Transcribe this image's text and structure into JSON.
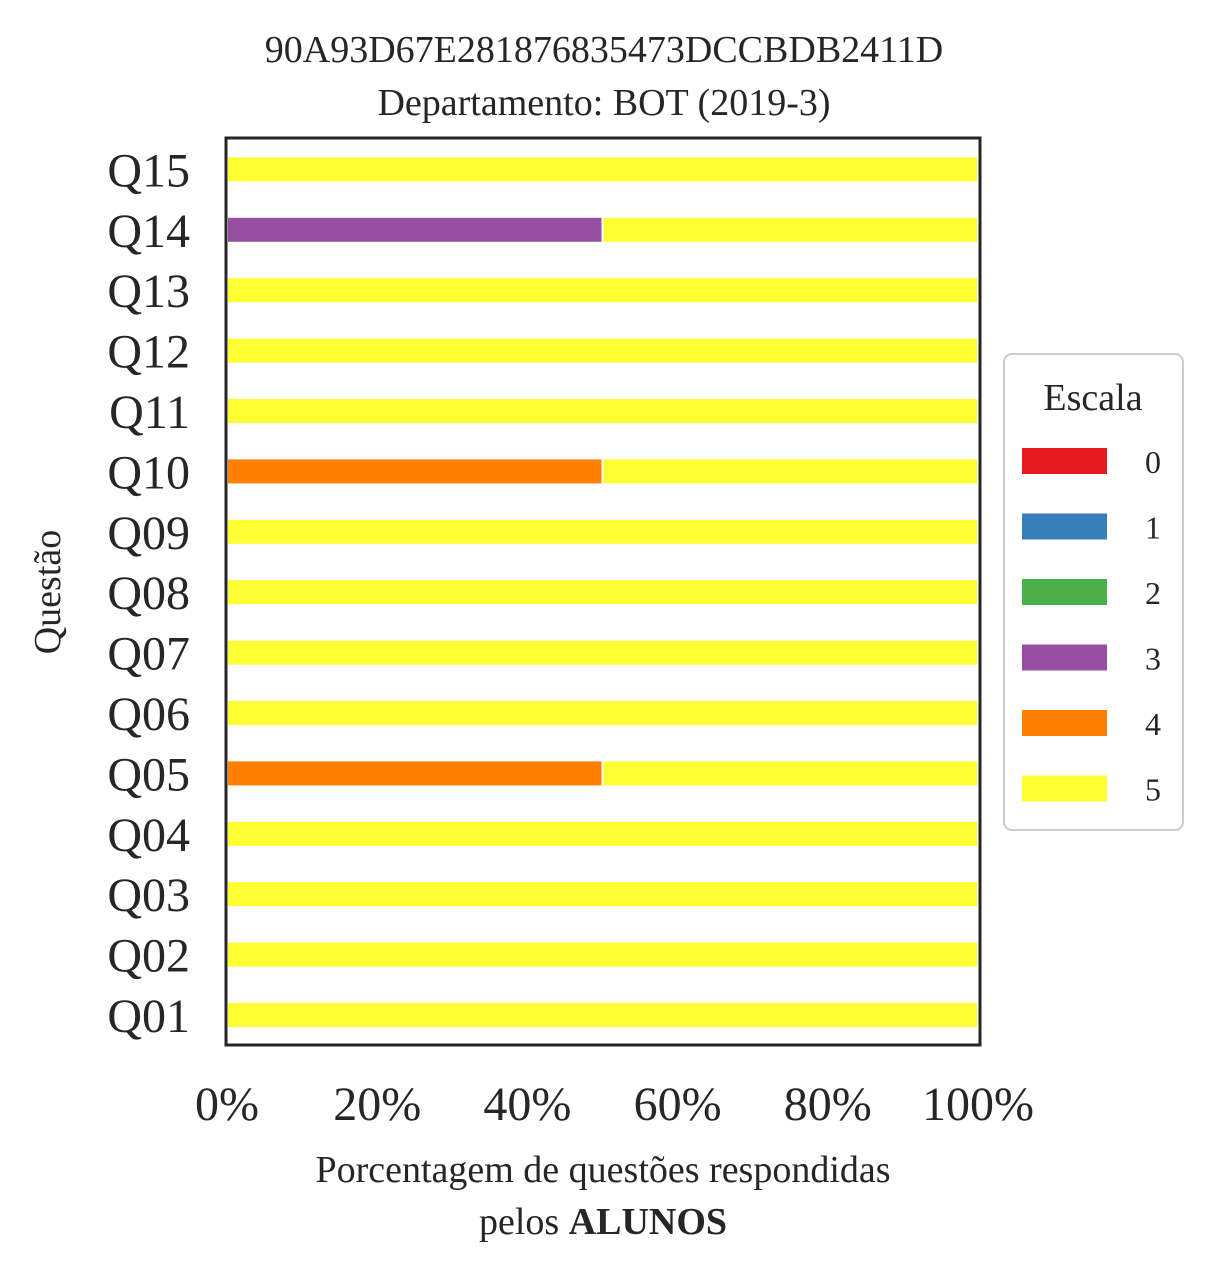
{
  "chart_data": {
    "type": "bar",
    "orientation": "horizontal",
    "stacked": true,
    "title": "90A93D67E281876835473DCCBDB2411D",
    "subtitle": "Departamento: BOT (2019-3)",
    "ylabel": "Questão",
    "xlabel_line1": "Porcentagem de questões respondidas",
    "xlabel_line2_prefix": "pelos ",
    "xlabel_line2_bold": "ALUNOS",
    "categories": [
      "Q01",
      "Q02",
      "Q03",
      "Q04",
      "Q05",
      "Q06",
      "Q07",
      "Q08",
      "Q09",
      "Q10",
      "Q11",
      "Q12",
      "Q13",
      "Q14",
      "Q15"
    ],
    "xticks": [
      "0%",
      "20%",
      "40%",
      "60%",
      "80%",
      "100%"
    ],
    "xlim": [
      0,
      100
    ],
    "legend_title": "Escala",
    "legend_position": "right",
    "grid": false,
    "series": [
      {
        "name": "0",
        "color": "#e41a1c",
        "values": [
          0,
          0,
          0,
          0,
          0,
          0,
          0,
          0,
          0,
          0,
          0,
          0,
          0,
          0,
          0
        ]
      },
      {
        "name": "1",
        "color": "#377eb8",
        "values": [
          0,
          0,
          0,
          0,
          0,
          0,
          0,
          0,
          0,
          0,
          0,
          0,
          0,
          0,
          0
        ]
      },
      {
        "name": "2",
        "color": "#4daf4a",
        "values": [
          0,
          0,
          0,
          0,
          0,
          0,
          0,
          0,
          0,
          0,
          0,
          0,
          0,
          0,
          0
        ]
      },
      {
        "name": "3",
        "color": "#984ea3",
        "values": [
          0,
          0,
          0,
          0,
          0,
          0,
          0,
          0,
          0,
          0,
          0,
          0,
          0,
          50,
          0
        ]
      },
      {
        "name": "4",
        "color": "#ff7f00",
        "values": [
          0,
          0,
          0,
          0,
          50,
          0,
          0,
          0,
          0,
          50,
          0,
          0,
          0,
          0,
          0
        ]
      },
      {
        "name": "5",
        "color": "#ffff33",
        "values": [
          100,
          100,
          100,
          100,
          50,
          100,
          100,
          100,
          100,
          50,
          100,
          100,
          100,
          50,
          100
        ]
      }
    ]
  }
}
